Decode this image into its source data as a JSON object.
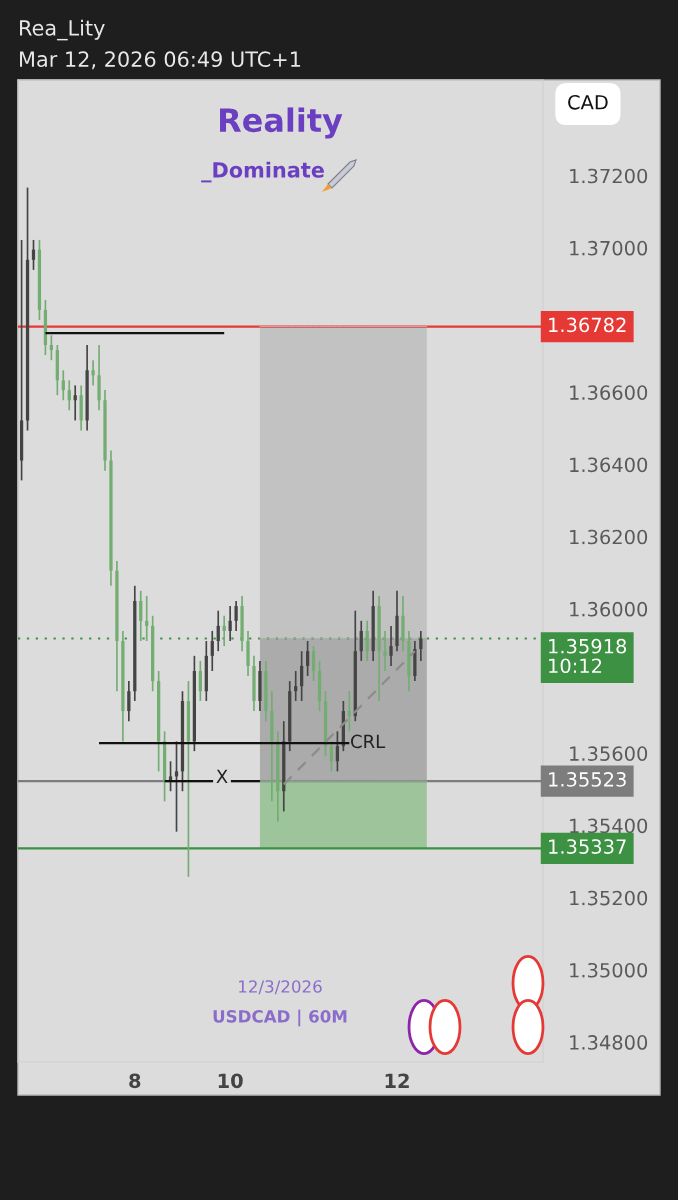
{
  "chart_data": {
    "type": "candlestick",
    "title": "Reality",
    "subtitle": "_Dominate",
    "annotations": [
      "Rea_Lity",
      "Mar 12, 2026 06:49 UTC+1",
      "CAD",
      "12/3/2026",
      "USDCAD | 60M",
      "X",
      "CRL"
    ],
    "categories": [
      null,
      null,
      null,
      null,
      null,
      null,
      null,
      null,
      null,
      null,
      null,
      null,
      null,
      null,
      null,
      null,
      null,
      null,
      null,
      "8",
      null,
      null,
      null,
      null,
      null,
      null,
      null,
      null,
      null,
      null,
      null,
      null,
      null,
      null,
      null,
      "10",
      null,
      null,
      null,
      null,
      null,
      null,
      null,
      null,
      null,
      null,
      null,
      null,
      null,
      null,
      null,
      null,
      null,
      null,
      null,
      null,
      null,
      null,
      null,
      null,
      null,
      null,
      null,
      "12",
      null,
      null,
      null,
      null,
      null,
      null,
      null,
      null,
      null,
      null,
      null,
      null,
      null,
      null,
      null,
      null,
      null,
      null,
      null,
      null,
      null,
      null,
      null,
      null
    ],
    "ohlc": [
      [
        1.36411,
        1.37022,
        1.36356,
        1.36522
      ],
      [
        1.36522,
        1.37167,
        1.36494,
        1.36967
      ],
      [
        1.36967,
        1.37022,
        1.36939,
        1.36995
      ],
      [
        1.36995,
        1.37022,
        1.368,
        1.36828
      ],
      [
        1.36828,
        1.36856,
        1.36703,
        1.36731
      ],
      [
        1.36731,
        1.36758,
        1.36689,
        1.36717
      ],
      [
        1.36717,
        1.36731,
        1.36592,
        1.36633
      ],
      [
        1.36633,
        1.36661,
        1.36578,
        1.36606
      ],
      [
        1.36606,
        1.36633,
        1.3655,
        1.36578
      ],
      [
        1.36578,
        1.36619,
        1.36522,
        1.36592
      ],
      [
        1.36592,
        1.36619,
        1.36494,
        1.36522
      ],
      [
        1.36522,
        1.36731,
        1.36494,
        1.36661
      ],
      [
        1.36661,
        1.36689,
        1.36619,
        1.36647
      ],
      [
        1.36647,
        1.36731,
        1.3655,
        1.36578
      ],
      [
        1.36578,
        1.36606,
        1.36383,
        1.36411
      ],
      [
        1.36411,
        1.36439,
        1.36064,
        1.36106
      ],
      [
        1.36106,
        1.36133,
        1.35772,
        1.35911
      ],
      [
        1.35911,
        1.35939,
        1.35633,
        1.35717
      ],
      [
        1.35717,
        1.358,
        1.35689,
        1.35772
      ],
      [
        1.35772,
        1.36064,
        1.35745,
        1.36022
      ],
      [
        1.36022,
        1.3605,
        1.35911,
        1.35967
      ],
      [
        1.35967,
        1.36036,
        1.35911,
        1.35953
      ],
      [
        1.35953,
        1.35981,
        1.35772,
        1.358
      ],
      [
        1.358,
        1.35828,
        1.3555,
        1.35633
      ],
      [
        1.35633,
        1.35661,
        1.35467,
        1.35522
      ],
      [
        1.35522,
        1.35578,
        1.35495,
        1.35536
      ],
      [
        1.35536,
        1.35633,
        1.35383,
        1.3555
      ],
      [
        1.3555,
        1.35772,
        1.35495,
        1.35745
      ],
      [
        1.35745,
        1.358,
        1.35258,
        1.35633
      ],
      [
        1.35633,
        1.3587,
        1.35606,
        1.35828
      ],
      [
        1.35828,
        1.35856,
        1.35745,
        1.35772
      ],
      [
        1.35772,
        1.35911,
        1.35745,
        1.3587
      ],
      [
        1.3587,
        1.35939,
        1.35828,
        1.35911
      ],
      [
        1.35911,
        1.35995,
        1.35883,
        1.35953
      ],
      [
        1.35953,
        1.35981,
        1.35897,
        1.35939
      ],
      [
        1.35939,
        1.36008,
        1.35911,
        1.35967
      ],
      [
        1.35967,
        1.36022,
        1.35939,
        1.36008
      ],
      [
        1.36008,
        1.36036,
        1.35883,
        1.35911
      ],
      [
        1.35911,
        1.35939,
        1.35814,
        1.35842
      ],
      [
        1.35842,
        1.3587,
        1.35717,
        1.35745
      ],
      [
        1.35745,
        1.35856,
        1.35717,
        1.35828
      ],
      [
        1.35828,
        1.35856,
        1.35689,
        1.35717
      ],
      [
        1.35717,
        1.35772,
        1.35467,
        1.35633
      ],
      [
        1.35633,
        1.35661,
        1.35411,
        1.35495
      ],
      [
        1.35495,
        1.35689,
        1.35439,
        1.35633
      ],
      [
        1.35633,
        1.358,
        1.35606,
        1.35772
      ],
      [
        1.35772,
        1.35828,
        1.35745,
        1.35786
      ],
      [
        1.35786,
        1.35883,
        1.35745,
        1.35842
      ],
      [
        1.35842,
        1.35911,
        1.35814,
        1.35883
      ],
      [
        1.35883,
        1.35897,
        1.358,
        1.35828
      ],
      [
        1.35828,
        1.35856,
        1.35717,
        1.35745
      ],
      [
        1.35745,
        1.35772,
        1.35592,
        1.3562
      ],
      [
        1.3562,
        1.35633,
        1.3555,
        1.35578
      ],
      [
        1.35578,
        1.35661,
        1.3555,
        1.3562
      ],
      [
        1.3562,
        1.35745,
        1.35606,
        1.35717
      ],
      [
        1.35717,
        1.35772,
        1.35661,
        1.35703
      ],
      [
        1.35703,
        1.35995,
        1.35689,
        1.35883
      ],
      [
        1.35883,
        1.35967,
        1.35856,
        1.35939
      ],
      [
        1.35939,
        1.35967,
        1.35856,
        1.35883
      ],
      [
        1.35883,
        1.3605,
        1.35856,
        1.36008
      ],
      [
        1.36008,
        1.36036,
        1.35745,
        1.35883
      ],
      [
        1.35883,
        1.35939,
        1.35828,
        1.3587
      ],
      [
        1.3587,
        1.35953,
        1.35842,
        1.35897
      ],
      [
        1.35897,
        1.3605,
        1.35883,
        1.35981
      ],
      [
        1.35981,
        1.36036,
        1.35883,
        1.35911
      ],
      [
        1.35911,
        1.35939,
        1.35772,
        1.35814
      ],
      [
        1.35814,
        1.35911,
        1.358,
        1.35889
      ],
      [
        1.35889,
        1.35939,
        1.35856,
        1.35918
      ],
      null,
      null,
      null,
      null,
      null,
      null,
      null,
      null,
      null,
      null,
      null,
      null,
      null,
      null,
      null,
      null,
      null,
      null,
      null,
      null
    ],
    "colors": [
      "#444444",
      "#444444",
      "#444444",
      "#73ad72",
      "#73ad72",
      "#73ad72",
      "#73ad72",
      "#73ad72",
      "#73ad72",
      "#444444",
      "#73ad72",
      "#444444",
      "#73ad72",
      "#73ad72",
      "#73ad72",
      "#73ad72",
      "#73ad72",
      "#73ad72",
      "#444444",
      "#444444",
      "#73ad72",
      "#73ad72",
      "#73ad72",
      "#73ad72",
      "#73ad72",
      "#444444",
      "#444444",
      "#444444",
      "#73ad72",
      "#444444",
      "#73ad72",
      "#444444",
      "#444444",
      "#444444",
      "#73ad72",
      "#444444",
      "#444444",
      "#73ad72",
      "#73ad72",
      "#73ad72",
      "#444444",
      "#73ad72",
      "#73ad72",
      "#73ad72",
      "#444444",
      "#444444",
      "#444444",
      "#444444",
      "#444444",
      "#73ad72",
      "#73ad72",
      "#73ad72",
      "#73ad72",
      "#444444",
      "#444444",
      "#73ad72",
      "#444444",
      "#444444",
      "#73ad72",
      "#444444",
      "#73ad72",
      "#73ad72",
      "#444444",
      "#444444",
      "#73ad72",
      "#73ad72",
      "#444444",
      "#444444",
      null,
      null,
      null,
      null,
      null,
      null,
      null,
      null,
      null,
      null,
      null,
      null,
      null,
      null,
      null,
      null,
      null,
      null,
      null,
      null
    ],
    "series": [
      {
        "type": "line",
        "color": "#c2c2c2",
        "values": [
          null,
          null,
          null,
          null,
          null,
          null,
          null,
          null,
          null,
          null,
          null,
          null,
          null,
          null,
          null,
          null,
          null,
          null,
          null,
          null,
          null,
          null,
          null,
          null,
          null,
          null,
          null,
          null,
          null,
          null,
          null,
          null,
          null,
          null,
          null,
          null,
          null,
          null,
          null,
          null,
          1.36782,
          1.36782,
          1.36782,
          1.36782,
          1.36782,
          1.36782,
          1.36782,
          1.36782,
          1.36782,
          1.36782,
          1.36782,
          1.36782,
          1.36782,
          1.36782,
          1.36782,
          1.36782,
          1.36782,
          1.36782,
          1.36782,
          1.36782,
          1.36782,
          1.36782,
          1.36782,
          1.36782,
          1.36782,
          1.36782,
          1.36782,
          1.36782,
          1.36782,
          null,
          null,
          null,
          null,
          null,
          null,
          null,
          null,
          null,
          null,
          null,
          null,
          null,
          null,
          null,
          null,
          null,
          null,
          null
        ],
        "upper": [
          null,
          null,
          null,
          null,
          null,
          null,
          null,
          null,
          null,
          null,
          null,
          null,
          null,
          null,
          null,
          null,
          null,
          null,
          null,
          null,
          null,
          null,
          null,
          null,
          null,
          null,
          null,
          null,
          null,
          null,
          null,
          null,
          null,
          null,
          null,
          null,
          null,
          null,
          null,
          null,
          1.36782,
          1.36782,
          1.36782,
          1.36782,
          1.36782,
          1.36782,
          1.36782,
          1.36782,
          1.36782,
          1.36782,
          1.36782,
          1.36782,
          1.36782,
          1.36782,
          1.36782,
          1.36782,
          1.36782,
          1.36782,
          1.36782,
          1.36782,
          1.36782,
          1.36782,
          1.36782,
          1.36782,
          1.36782,
          1.36782,
          1.36782,
          1.36782,
          1.36782,
          null,
          null,
          null,
          null,
          null,
          null,
          null,
          null,
          null,
          null,
          null,
          null,
          null,
          null,
          null,
          null,
          null,
          null,
          null
        ],
        "lower": [
          null,
          null,
          null,
          null,
          null,
          null,
          null,
          null,
          null,
          null,
          null,
          null,
          null,
          null,
          null,
          null,
          null,
          null,
          null,
          null,
          null,
          null,
          null,
          null,
          null,
          null,
          null,
          null,
          null,
          null,
          null,
          null,
          null,
          null,
          null,
          null,
          null,
          null,
          null,
          null,
          1.35918,
          1.35918,
          1.35918,
          1.35918,
          1.35918,
          1.35918,
          1.35918,
          1.35918,
          1.35918,
          1.35918,
          1.35918,
          1.35918,
          1.35918,
          1.35918,
          1.35918,
          1.35918,
          1.35918,
          1.35918,
          1.35918,
          1.35918,
          1.35918,
          1.35918,
          1.35918,
          1.35918,
          1.35918,
          1.35918,
          1.35918,
          1.35918,
          1.35918,
          null,
          null,
          null,
          null,
          null,
          null,
          null,
          null,
          null,
          null,
          null,
          null,
          null,
          null,
          null,
          null,
          null,
          null,
          null
        ]
      },
      {
        "type": "line",
        "color": "#ababab",
        "values": [
          null,
          null,
          null,
          null,
          null,
          null,
          null,
          null,
          null,
          null,
          null,
          null,
          null,
          null,
          null,
          null,
          null,
          null,
          null,
          null,
          null,
          null,
          null,
          null,
          null,
          null,
          null,
          null,
          null,
          null,
          null,
          null,
          null,
          null,
          null,
          null,
          null,
          null,
          null,
          null,
          1.35918,
          1.35918,
          1.35918,
          1.35918,
          1.35918,
          1.35918,
          1.35918,
          1.35918,
          1.35918,
          1.35918,
          1.35918,
          1.35918,
          1.35918,
          1.35918,
          1.35918,
          1.35918,
          1.35918,
          1.35918,
          1.35918,
          1.35918,
          1.35918,
          1.35918,
          1.35918,
          1.35918,
          1.35918,
          1.35918,
          1.35918,
          1.35918,
          1.35918,
          null,
          null,
          null,
          null,
          null,
          null,
          null,
          null,
          null,
          null,
          null,
          null,
          null,
          null,
          null,
          null,
          null,
          null,
          null
        ],
        "upper": [
          null,
          null,
          null,
          null,
          null,
          null,
          null,
          null,
          null,
          null,
          null,
          null,
          null,
          null,
          null,
          null,
          null,
          null,
          null,
          null,
          null,
          null,
          null,
          null,
          null,
          null,
          null,
          null,
          null,
          null,
          null,
          null,
          null,
          null,
          null,
          null,
          null,
          null,
          null,
          null,
          1.35918,
          1.35918,
          1.35918,
          1.35918,
          1.35918,
          1.35918,
          1.35918,
          1.35918,
          1.35918,
          1.35918,
          1.35918,
          1.35918,
          1.35918,
          1.35918,
          1.35918,
          1.35918,
          1.35918,
          1.35918,
          1.35918,
          1.35918,
          1.35918,
          1.35918,
          1.35918,
          1.35918,
          1.35918,
          1.35918,
          1.35918,
          1.35918,
          1.35918,
          null,
          null,
          null,
          null,
          null,
          null,
          null,
          null,
          null,
          null,
          null,
          null,
          null,
          null,
          null,
          null,
          null,
          null,
          null
        ],
        "lower": [
          null,
          null,
          null,
          null,
          null,
          null,
          null,
          null,
          null,
          null,
          null,
          null,
          null,
          null,
          null,
          null,
          null,
          null,
          null,
          null,
          null,
          null,
          null,
          null,
          null,
          null,
          null,
          null,
          null,
          null,
          null,
          null,
          null,
          null,
          null,
          null,
          null,
          null,
          null,
          null,
          1.35523,
          1.35523,
          1.35523,
          1.35523,
          1.35523,
          1.35523,
          1.35523,
          1.35523,
          1.35523,
          1.35523,
          1.35523,
          1.35523,
          1.35523,
          1.35523,
          1.35523,
          1.35523,
          1.35523,
          1.35523,
          1.35523,
          1.35523,
          1.35523,
          1.35523,
          1.35523,
          1.35523,
          1.35523,
          1.35523,
          1.35523,
          1.35523,
          1.35523,
          null,
          null,
          null,
          null,
          null,
          null,
          null,
          null,
          null,
          null,
          null,
          null,
          null,
          null,
          null,
          null,
          null,
          null,
          null
        ]
      },
      {
        "type": "line",
        "color": "#9dc49b",
        "values": [
          null,
          null,
          null,
          null,
          null,
          null,
          null,
          null,
          null,
          null,
          null,
          null,
          null,
          null,
          null,
          null,
          null,
          null,
          null,
          null,
          null,
          null,
          null,
          null,
          null,
          null,
          null,
          null,
          null,
          null,
          null,
          null,
          null,
          null,
          null,
          null,
          null,
          null,
          null,
          null,
          1.35523,
          1.35523,
          1.35523,
          1.35523,
          1.35523,
          1.35523,
          1.35523,
          1.35523,
          1.35523,
          1.35523,
          1.35523,
          1.35523,
          1.35523,
          1.35523,
          1.35523,
          1.35523,
          1.35523,
          1.35523,
          1.35523,
          1.35523,
          1.35523,
          1.35523,
          1.35523,
          1.35523,
          1.35523,
          1.35523,
          1.35523,
          1.35523,
          1.35523,
          null,
          null,
          null,
          null,
          null,
          null,
          null,
          null,
          null,
          null,
          null,
          null,
          null,
          null,
          null,
          null,
          null,
          null,
          null
        ],
        "upper": [
          null,
          null,
          null,
          null,
          null,
          null,
          null,
          null,
          null,
          null,
          null,
          null,
          null,
          null,
          null,
          null,
          null,
          null,
          null,
          null,
          null,
          null,
          null,
          null,
          null,
          null,
          null,
          null,
          null,
          null,
          null,
          null,
          null,
          null,
          null,
          null,
          null,
          null,
          null,
          null,
          1.35523,
          1.35523,
          1.35523,
          1.35523,
          1.35523,
          1.35523,
          1.35523,
          1.35523,
          1.35523,
          1.35523,
          1.35523,
          1.35523,
          1.35523,
          1.35523,
          1.35523,
          1.35523,
          1.35523,
          1.35523,
          1.35523,
          1.35523,
          1.35523,
          1.35523,
          1.35523,
          1.35523,
          1.35523,
          1.35523,
          1.35523,
          1.35523,
          1.35523,
          null,
          null,
          null,
          null,
          null,
          null,
          null,
          null,
          null,
          null,
          null,
          null,
          null,
          null,
          null,
          null,
          null,
          null,
          null
        ],
        "lower": [
          null,
          null,
          null,
          null,
          null,
          null,
          null,
          null,
          null,
          null,
          null,
          null,
          null,
          null,
          null,
          null,
          null,
          null,
          null,
          null,
          null,
          null,
          null,
          null,
          null,
          null,
          null,
          null,
          null,
          null,
          null,
          null,
          null,
          null,
          null,
          null,
          null,
          null,
          null,
          null,
          1.35337,
          1.35337,
          1.35337,
          1.35337,
          1.35337,
          1.35337,
          1.35337,
          1.35337,
          1.35337,
          1.35337,
          1.35337,
          1.35337,
          1.35337,
          1.35337,
          1.35337,
          1.35337,
          1.35337,
          1.35337,
          1.35337,
          1.35337,
          1.35337,
          1.35337,
          1.35337,
          1.35337,
          1.35337,
          1.35337,
          1.35337,
          1.35337,
          1.35337,
          null,
          null,
          null,
          null,
          null,
          null,
          null,
          null,
          null,
          null,
          null,
          null,
          null,
          null,
          null,
          null,
          null,
          null,
          null
        ]
      },
      {
        "type": "line",
        "color": "#111111",
        "line_style": "solid",
        "values": [
          null,
          null,
          null,
          null,
          1.36764,
          null,
          null,
          null,
          null,
          null,
          null,
          null,
          null,
          null,
          null,
          null,
          null,
          null,
          null,
          null,
          null,
          null,
          null,
          null,
          null,
          null,
          null,
          null,
          null,
          null,
          null,
          null,
          null,
          null,
          1.36764,
          null,
          null,
          null,
          null,
          null,
          null,
          null,
          null,
          null,
          null,
          null,
          null,
          null,
          null,
          null,
          null,
          null,
          null,
          null,
          null,
          null,
          null,
          null,
          null,
          null,
          null,
          null,
          null,
          null,
          null,
          null,
          null,
          null,
          null,
          null,
          null,
          null,
          null,
          null,
          null,
          null,
          null,
          null,
          null,
          null,
          null,
          null,
          null,
          null,
          null,
          null,
          null,
          null
        ]
      },
      {
        "type": "line",
        "color": "#111111",
        "line_style": "solid",
        "values": [
          null,
          null,
          null,
          null,
          null,
          null,
          null,
          null,
          null,
          null,
          null,
          null,
          null,
          1.35628,
          null,
          null,
          null,
          null,
          null,
          null,
          null,
          null,
          null,
          null,
          null,
          null,
          null,
          null,
          null,
          null,
          null,
          null,
          null,
          null,
          null,
          null,
          null,
          null,
          null,
          null,
          null,
          null,
          null,
          null,
          null,
          null,
          null,
          null,
          null,
          null,
          null,
          null,
          null,
          null,
          null,
          1.35628,
          null,
          null,
          null,
          null,
          null,
          null,
          null,
          null,
          null,
          null,
          null,
          null,
          null,
          null,
          null,
          null,
          null,
          null,
          null,
          null,
          null,
          null,
          null,
          null,
          null,
          null,
          null,
          null,
          null,
          null,
          null,
          null
        ]
      },
      {
        "type": "line",
        "color": "#111111",
        "line_style": "solid",
        "values": [
          null,
          null,
          null,
          null,
          null,
          null,
          null,
          null,
          null,
          null,
          null,
          null,
          null,
          null,
          null,
          null,
          null,
          null,
          null,
          null,
          null,
          null,
          null,
          null,
          1.35523,
          null,
          null,
          null,
          null,
          null,
          null,
          null,
          null,
          null,
          null,
          null,
          null,
          null,
          null,
          null,
          1.35523,
          null,
          null,
          null,
          null,
          null,
          null,
          null,
          null,
          null,
          null,
          null,
          null,
          null,
          null,
          null,
          null,
          null,
          null,
          null,
          null,
          null,
          null,
          null,
          null,
          null,
          null,
          null,
          null,
          null,
          null,
          null,
          null,
          null,
          null,
          null,
          null,
          null,
          null,
          null,
          null,
          null,
          null,
          null,
          null,
          null,
          null,
          null
        ]
      },
      {
        "type": "line",
        "color": "#8c8c8c",
        "line_style": "dashed",
        "values": [
          null,
          null,
          null,
          null,
          null,
          null,
          null,
          null,
          null,
          null,
          null,
          null,
          null,
          null,
          null,
          null,
          null,
          null,
          null,
          null,
          null,
          null,
          null,
          null,
          null,
          null,
          null,
          null,
          null,
          null,
          null,
          null,
          null,
          null,
          null,
          null,
          null,
          null,
          null,
          null,
          null,
          null,
          null,
          null,
          1.35514,
          null,
          null,
          null,
          null,
          null,
          null,
          null,
          null,
          null,
          null,
          null,
          null,
          null,
          null,
          null,
          null,
          null,
          null,
          null,
          null,
          null,
          1.35883,
          null,
          null,
          null,
          null,
          null,
          null,
          null,
          null,
          null,
          null,
          null,
          null,
          null,
          null,
          null,
          null,
          null,
          null,
          null,
          null,
          null
        ]
      }
    ],
    "ref_lines": [
      {
        "axis": "y",
        "value": 1.36782,
        "label": "1.36782",
        "color": "#e53935",
        "line_style": "solid"
      },
      {
        "axis": "y",
        "value": 1.35918,
        "label": "1.35918\n10:12",
        "color": "#3d9142",
        "line_style": "dotted"
      },
      {
        "axis": "y",
        "value": 1.35523,
        "label": "1.35523",
        "color": "#7d7d7d",
        "line_style": "solid"
      },
      {
        "axis": "y",
        "value": 1.35337,
        "label": "1.35337",
        "color": "#3d9142",
        "line_style": "solid"
      }
    ],
    "ylim": [
      1.34745,
      1.37465
    ],
    "yticks": [
      {
        "value": 1.348,
        "label": "1.34800"
      },
      {
        "value": 1.35,
        "label": "1.35000"
      },
      {
        "value": 1.352,
        "label": "1.35200"
      },
      {
        "value": 1.354,
        "label": "1.35400"
      },
      {
        "value": 1.356,
        "label": "1.35600"
      },
      {
        "value": 1.36,
        "label": "1.36000"
      },
      {
        "value": 1.362,
        "label": "1.36200"
      },
      {
        "value": 1.364,
        "label": "1.36400"
      },
      {
        "value": 1.366,
        "label": "1.36600"
      },
      {
        "value": 1.37,
        "label": "1.37000"
      },
      {
        "value": 1.372,
        "label": "1.37200"
      }
    ],
    "grid": false,
    "legend": false
  }
}
